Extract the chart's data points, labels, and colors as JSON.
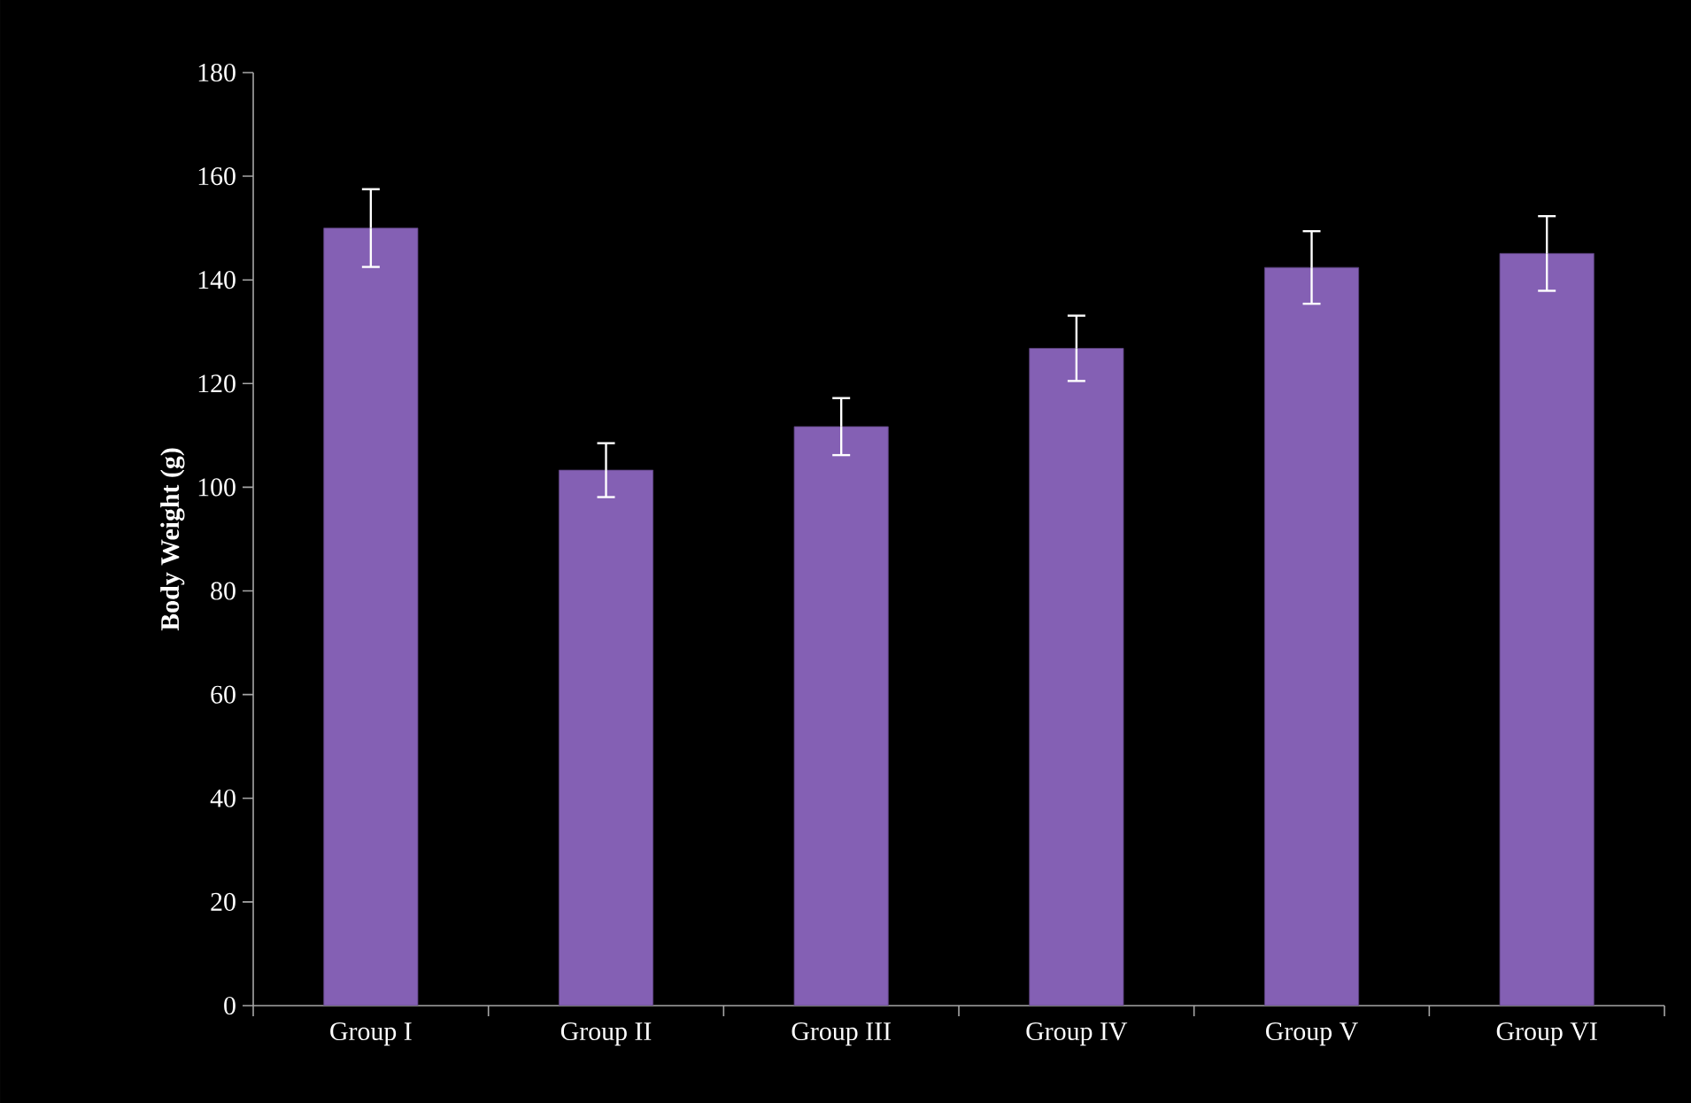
{
  "chart_data": {
    "type": "bar",
    "ylabel": "Body Weight (g)",
    "categories": [
      "Group I",
      "Group II",
      "Group III",
      "Group IV",
      "Group V",
      "Group VI"
    ],
    "values": [
      150,
      103.3,
      111.7,
      126.8,
      142.4,
      145.1
    ],
    "errors": [
      7.5,
      5.2,
      5.5,
      6.3,
      7,
      7.2
    ],
    "color": "#8460b4",
    "ylim": [
      0,
      180
    ],
    "yticks": [
      0,
      20,
      40,
      60,
      80,
      100,
      120,
      140,
      160,
      180
    ],
    "grid": false
  }
}
